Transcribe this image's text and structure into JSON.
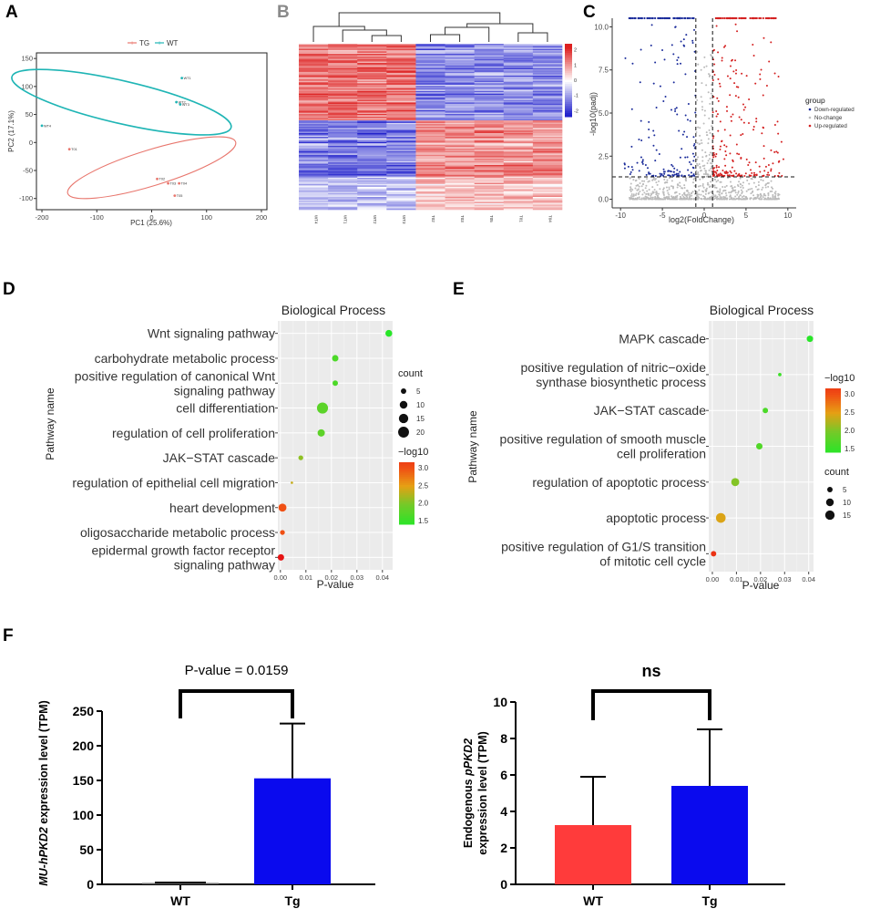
{
  "panels": {
    "A": {
      "letter": "A",
      "chart_data": {
        "type": "scatter",
        "title": "",
        "xlabel": "PC1 (25.6%)",
        "ylabel": "PC2 (17.1%)",
        "xlim": [
          -210,
          210
        ],
        "ylim": [
          -120,
          160
        ],
        "xticks": [
          "-200",
          "-100",
          "0",
          "100",
          "200"
        ],
        "xtick_values": [
          -200,
          -100,
          0,
          100,
          200
        ],
        "yticks": [
          "150",
          "100",
          "50",
          "0",
          "-50",
          "-100"
        ],
        "ytick_values": [
          150,
          100,
          50,
          0,
          -50,
          -100
        ],
        "legend": [
          {
            "name": "TG",
            "color": "#e8766d"
          },
          {
            "name": "WT",
            "color": "#1fb5b5"
          }
        ],
        "series": [
          {
            "name": "TG",
            "color": "#e8766d",
            "points": [
              {
                "label": "T01",
                "x": -150,
                "y": -12
              },
              {
                "label": "T02",
                "x": 10,
                "y": -65
              },
              {
                "label": "T03",
                "x": 30,
                "y": -73
              },
              {
                "label": "T04",
                "x": 50,
                "y": -73
              },
              {
                "label": "T05",
                "x": 42,
                "y": -95
              }
            ],
            "ellipse": {
              "cx": 0,
              "cy": -45,
              "rx": 160,
              "ry": 32,
              "angle": -17
            }
          },
          {
            "name": "WT",
            "color": "#1fb5b5",
            "points": [
              {
                "label": "WT1",
                "x": 55,
                "y": 115
              },
              {
                "label": "WT2",
                "x": 45,
                "y": 72
              },
              {
                "label": "WT3",
                "x": 52,
                "y": 68
              },
              {
                "label": "WT4",
                "x": -200,
                "y": 30
              }
            ],
            "ellipse": {
              "cx": -55,
              "cy": 72,
              "rx": 205,
              "ry": 38,
              "angle": 13
            }
          }
        ]
      }
    },
    "B": {
      "letter": "B",
      "chart_data": {
        "type": "heatmap",
        "columns": [
          "WT4",
          "WT1",
          "WT2",
          "WT3",
          "T02",
          "T03",
          "T05",
          "T01",
          "T04"
        ],
        "color_scale": {
          "ticks": [
            "2",
            "1",
            "0",
            "-1",
            "-2"
          ],
          "tick_values": [
            2,
            1,
            0,
            -1,
            -2
          ],
          "low": "#2222cc",
          "mid": "#ffffff",
          "high": "#dd2020"
        }
      }
    },
    "C": {
      "letter": "C",
      "chart_data": {
        "type": "scatter",
        "xlabel": "log2(FoldChange)",
        "ylabel": "-log10(padj)",
        "xlim": [
          -11,
          11
        ],
        "ylim": [
          -0.5,
          10.5
        ],
        "xticks": [
          "-10",
          "-5",
          "0",
          "5",
          "10"
        ],
        "xtick_values": [
          -10,
          -5,
          0,
          5,
          10
        ],
        "yticks": [
          "10.0",
          "7.5",
          "5.0",
          "2.5",
          "0.0"
        ],
        "ytick_values": [
          10,
          7.5,
          5,
          2.5,
          0
        ],
        "fc_threshold": 1,
        "padj_threshold": 1.3,
        "legend_title": "group",
        "legend": [
          {
            "name": "Down-regulated",
            "color": "#1a2b9a"
          },
          {
            "name": "No-change",
            "color": "#bbbbbb"
          },
          {
            "name": "Up-regulated",
            "color": "#d42020"
          }
        ],
        "seed": 7
      }
    },
    "D": {
      "letter": "D",
      "chart_data": {
        "type": "scatter",
        "title": "Biological Process",
        "xlabel": "P-value",
        "ylabel": "Pathway name",
        "xlim": [
          -0.001,
          0.044
        ],
        "xticks": [
          "0.00",
          "0.01",
          "0.02",
          "0.03",
          "0.04"
        ],
        "xtick_values": [
          0,
          0.01,
          0.02,
          0.03,
          0.04
        ],
        "size_legend": {
          "title": "count",
          "labels": [
            "5",
            "10",
            "15",
            "20"
          ],
          "values": [
            5,
            10,
            15,
            20
          ]
        },
        "color_legend": {
          "title": "−log10",
          "labels": [
            "3.0",
            "2.5",
            "2.0",
            "1.5"
          ],
          "values": [
            3.0,
            2.5,
            2.0,
            1.5
          ]
        },
        "rows": [
          {
            "lines": [
              "Wnt signaling pathway"
            ],
            "pvalue": 0.0425,
            "count": 8,
            "log10": 1.37
          },
          {
            "lines": [
              "carbohydrate metabolic process"
            ],
            "pvalue": 0.0215,
            "count": 7,
            "log10": 1.67
          },
          {
            "lines": [
              "positive regulation of canonical Wnt",
              "signaling pathway"
            ],
            "pvalue": 0.0215,
            "count": 5,
            "log10": 1.67
          },
          {
            "lines": [
              "cell differentiation"
            ],
            "pvalue": 0.0165,
            "count": 21,
            "log10": 1.78
          },
          {
            "lines": [
              "regulation of cell proliferation"
            ],
            "pvalue": 0.016,
            "count": 9,
            "log10": 1.8
          },
          {
            "lines": [
              "JAK−STAT cascade"
            ],
            "pvalue": 0.008,
            "count": 4,
            "log10": 2.1
          },
          {
            "lines": [
              "regulation of epithelial cell migration"
            ],
            "pvalue": 0.0045,
            "count": 1,
            "log10": 2.35
          },
          {
            "lines": [
              "heart development"
            ],
            "pvalue": 0.0008,
            "count": 11,
            "log10": 3.0
          },
          {
            "lines": [
              "oligosaccharide metabolic process"
            ],
            "pvalue": 0.0008,
            "count": 4,
            "log10": 3.0
          },
          {
            "lines": [
              "epidermal growth factor receptor",
              "signaling pathway"
            ],
            "pvalue": 0.0002,
            "count": 7,
            "log10": 3.6
          }
        ]
      }
    },
    "E": {
      "letter": "E",
      "chart_data": {
        "type": "scatter",
        "title": "Biological Process",
        "xlabel": "P-value",
        "ylabel": "Pathway name",
        "xlim": [
          -0.0015,
          0.042
        ],
        "xticks": [
          "0.00",
          "0.01",
          "0.02",
          "0.03",
          "0.04"
        ],
        "xtick_values": [
          0,
          0.01,
          0.02,
          0.03,
          0.04
        ],
        "color_legend": {
          "title": "−log10",
          "labels": [
            "3.0",
            "2.5",
            "2.0",
            "1.5"
          ],
          "values": [
            3.0,
            2.5,
            2.0,
            1.5
          ]
        },
        "size_legend": {
          "title": "count",
          "labels": [
            "5",
            "10",
            "15"
          ],
          "values": [
            5,
            10,
            15
          ]
        },
        "rows": [
          {
            "lines": [
              "MAPK cascade"
            ],
            "pvalue": 0.0405,
            "count": 7,
            "log10": 1.39
          },
          {
            "lines": [
              "positive regulation of nitric−oxide",
              "synthase biosynthetic process"
            ],
            "pvalue": 0.028,
            "count": 2,
            "log10": 1.55
          },
          {
            "lines": [
              "JAK−STAT cascade"
            ],
            "pvalue": 0.022,
            "count": 5,
            "log10": 1.66
          },
          {
            "lines": [
              "positive regulation of smooth muscle",
              "cell proliferation"
            ],
            "pvalue": 0.0195,
            "count": 7,
            "log10": 1.71
          },
          {
            "lines": [
              "regulation of apoptotic process"
            ],
            "pvalue": 0.0095,
            "count": 11,
            "log10": 2.05
          },
          {
            "lines": [
              "apoptotic process"
            ],
            "pvalue": 0.0035,
            "count": 16,
            "log10": 2.45
          },
          {
            "lines": [
              "positive regulation of G1/S transition",
              "of mitotic cell cycle"
            ],
            "pvalue": 0.0005,
            "count": 5,
            "log10": 3.3
          }
        ]
      }
    },
    "F": {
      "letter": "F",
      "charts": [
        {
          "type": "bar",
          "ylabel_italic": "MU-hPKD2",
          "ylabel_rest": " expression level (TPM)",
          "categories": [
            "WT",
            "Tg"
          ],
          "values": [
            2,
            153
          ],
          "errors": [
            0,
            79
          ],
          "colors": [
            "#666666",
            "#0a0aee"
          ],
          "ylim": [
            0,
            250
          ],
          "yticks": [
            "250",
            "200",
            "150",
            "100",
            "50",
            "0"
          ],
          "ytick_values": [
            250,
            200,
            150,
            100,
            50,
            0
          ],
          "annotation": "P-value = 0.0159"
        },
        {
          "type": "bar",
          "ylabel_line1_pre": "Endogenous ",
          "ylabel_line1_italic": "pPKD2",
          "ylabel_line2": "expression level (TPM)",
          "categories": [
            "WT",
            "Tg"
          ],
          "values": [
            3.25,
            5.4
          ],
          "errors": [
            2.65,
            3.1
          ],
          "colors": [
            "#ff3b3b",
            "#0a0aee"
          ],
          "ylim": [
            0,
            10
          ],
          "yticks": [
            "10",
            "8",
            "6",
            "4",
            "2",
            "0"
          ],
          "ytick_values": [
            10,
            8,
            6,
            4,
            2,
            0
          ],
          "annotation": "ns"
        }
      ]
    }
  }
}
